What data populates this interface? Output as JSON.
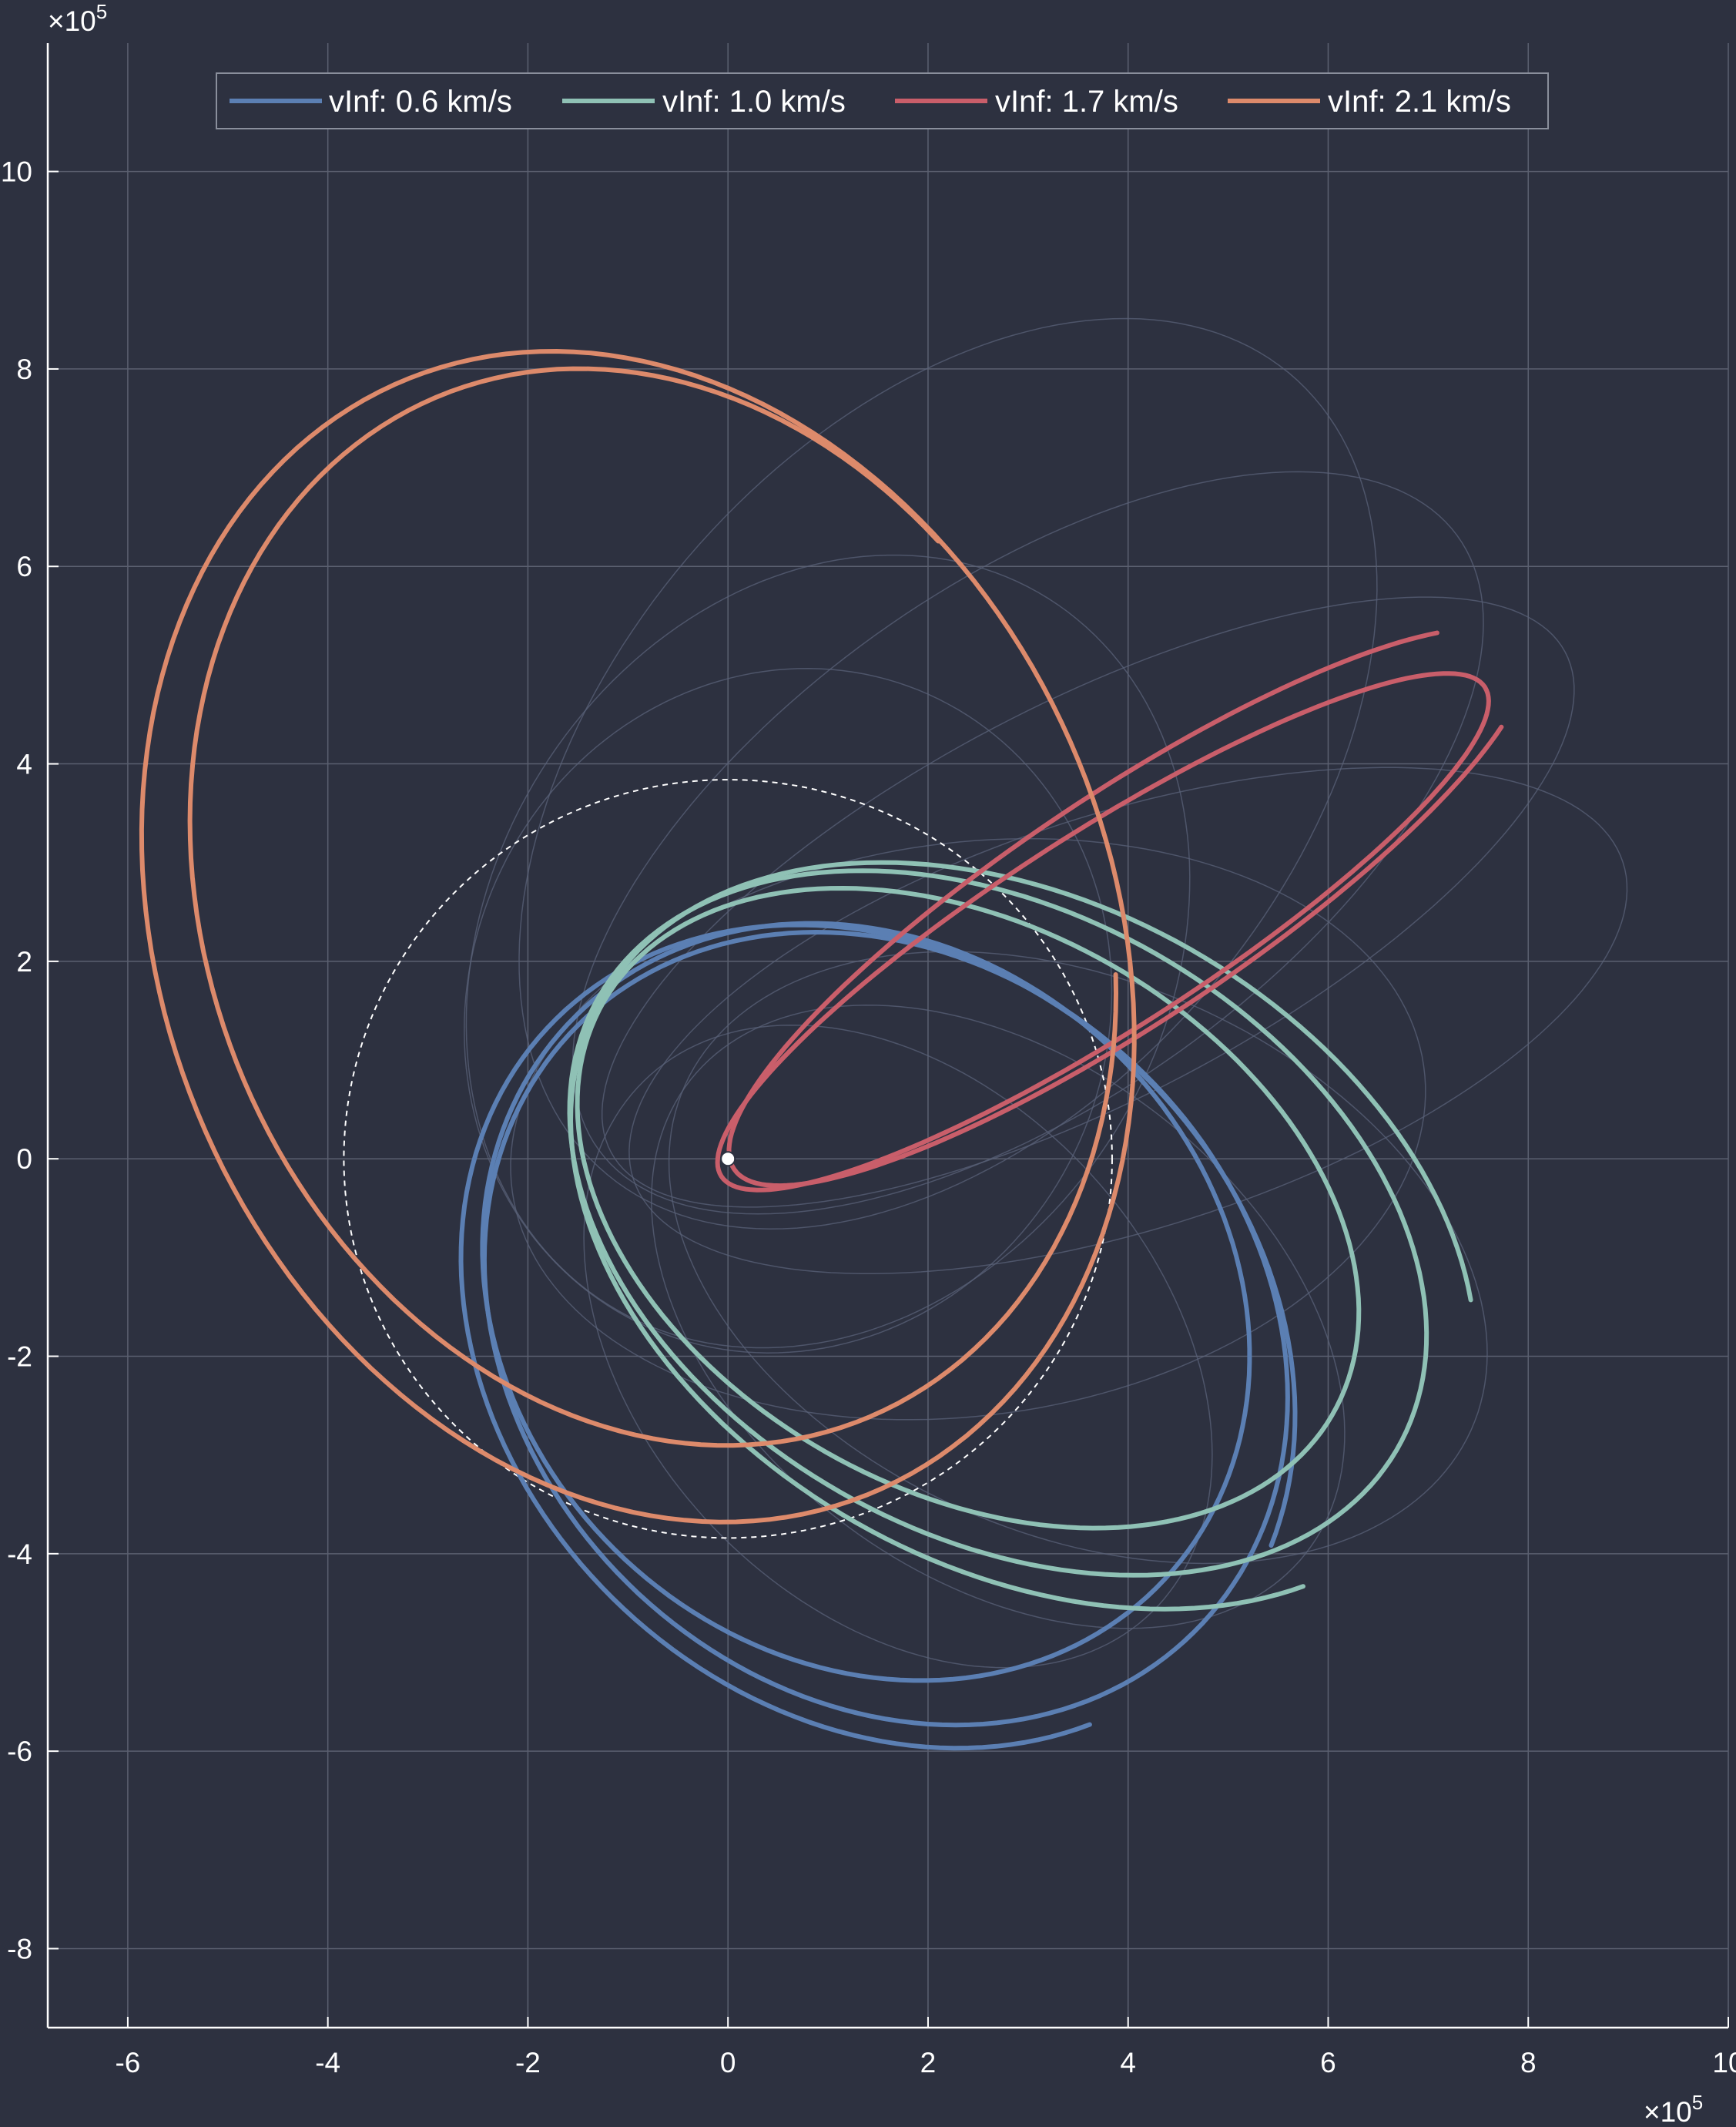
{
  "chart_data": {
    "type": "line",
    "title": "",
    "xlabel": "",
    "ylabel": "",
    "xlim": [
      -6.8,
      10
    ],
    "ylim": [
      -8.8,
      11.3
    ],
    "x_exponent": {
      "base": "×10",
      "power": "5"
    },
    "y_exponent": {
      "base": "×10",
      "power": "5"
    },
    "x_ticks": [
      -6,
      -4,
      -2,
      0,
      2,
      4,
      6,
      8,
      10
    ],
    "y_ticks": [
      -8,
      -6,
      -4,
      -2,
      0,
      2,
      4,
      6,
      8,
      10
    ],
    "x_tick_labels": [
      "-6",
      "-4",
      "-2",
      "0",
      "2",
      "4",
      "6",
      "8",
      "10"
    ],
    "y_tick_labels": [
      "-8",
      "-6",
      "-4",
      "-2",
      "0",
      "2",
      "4",
      "6",
      "8",
      "10"
    ],
    "grid": true,
    "legend_position": "top",
    "colors": {
      "background": "#2d3140",
      "grid": "#5b6070",
      "axis": "#ffffff",
      "faint_orbit": "#5a6178",
      "reference_circle": "#ffffff"
    },
    "reference_circle": {
      "cx": 0,
      "cy": 0,
      "r": 3.84,
      "style": "dashed"
    },
    "central_body": {
      "x": 0,
      "y": 0
    },
    "faint_orbits": [
      {
        "cx": 2.2,
        "cy": 3.9,
        "rx": 5.3,
        "ry": 3.4,
        "rot": 50
      },
      {
        "cx": 3.0,
        "cy": 3.2,
        "rx": 5.3,
        "ry": 2.6,
        "rot": 36
      },
      {
        "cx": 3.6,
        "cy": 2.6,
        "rx": 5.4,
        "ry": 2.0,
        "rot": 28
      },
      {
        "cx": 4.0,
        "cy": 1.4,
        "rx": 5.2,
        "ry": 2.1,
        "rot": 18
      },
      {
        "cx": 3.5,
        "cy": -1.0,
        "rx": 4.3,
        "ry": 2.8,
        "rot": -24
      },
      {
        "cx": 2.7,
        "cy": -1.6,
        "rx": 3.9,
        "ry": 2.6,
        "rot": -38
      },
      {
        "cx": 1.7,
        "cy": -1.9,
        "rx": 3.7,
        "ry": 2.6,
        "rot": -48
      },
      {
        "cx": 1.0,
        "cy": 2.1,
        "rx": 4.2,
        "ry": 3.4,
        "rot": 60
      },
      {
        "cx": 0.6,
        "cy": 1.5,
        "rx": 3.5,
        "ry": 3.2,
        "rot": 70
      },
      {
        "cx": 2.4,
        "cy": 0.3,
        "rx": 4.6,
        "ry": 2.9,
        "rot": 8
      }
    ],
    "series": [
      {
        "name": "vInf: 0.6 km/s",
        "color": "#5b7fb3",
        "orbits": [
          {
            "cx": 1.38,
            "cy": -1.45,
            "rx": 4.1,
            "ry": 3.55,
            "rot": -45,
            "t0": 0,
            "t1": 360
          },
          {
            "cx": 1.58,
            "cy": -1.72,
            "rx": 4.35,
            "ry": 3.65,
            "rot": -45,
            "t0": 0,
            "t1": 360
          },
          {
            "cx": 1.5,
            "cy": -1.8,
            "rx": 4.55,
            "ry": 3.75,
            "rot": -45,
            "t0": 20,
            "t1": 340
          }
        ]
      },
      {
        "name": "vInf: 1.0 km/s",
        "color": "#8fc1b5",
        "orbits": [
          {
            "cx": 2.4,
            "cy": -0.5,
            "rx": 4.2,
            "ry": 2.85,
            "rot": -30,
            "t0": 0,
            "t1": 360
          },
          {
            "cx": 2.7,
            "cy": -0.65,
            "rx": 4.6,
            "ry": 3.15,
            "rot": -30,
            "t0": 0,
            "t1": 360
          },
          {
            "cx": 2.95,
            "cy": -0.78,
            "rx": 4.85,
            "ry": 3.35,
            "rot": -30,
            "t0": 30,
            "t1": 330
          }
        ]
      },
      {
        "name": "vInf: 1.7 km/s",
        "color": "#c95e6a",
        "orbits": [
          {
            "cx": 3.75,
            "cy": 2.3,
            "rx": 4.55,
            "ry": 1.0,
            "rot": 33,
            "t0": 0,
            "t1": 360
          },
          {
            "cx": 4.0,
            "cy": 2.55,
            "rx": 4.75,
            "ry": 1.15,
            "rot": 34,
            "t0": 30,
            "t1": 330
          }
        ]
      },
      {
        "name": "vInf: 2.1 km/s",
        "color": "#dd8a6b",
        "orbits": [
          {
            "cx": -0.9,
            "cy": 2.25,
            "rx": 4.75,
            "ry": 6.1,
            "rot": 22,
            "t0": 0,
            "t1": 360
          },
          {
            "cx": -0.75,
            "cy": 2.55,
            "rx": 4.45,
            "ry": 5.6,
            "rot": 22,
            "t0": 25,
            "t1": 335
          }
        ]
      }
    ]
  }
}
